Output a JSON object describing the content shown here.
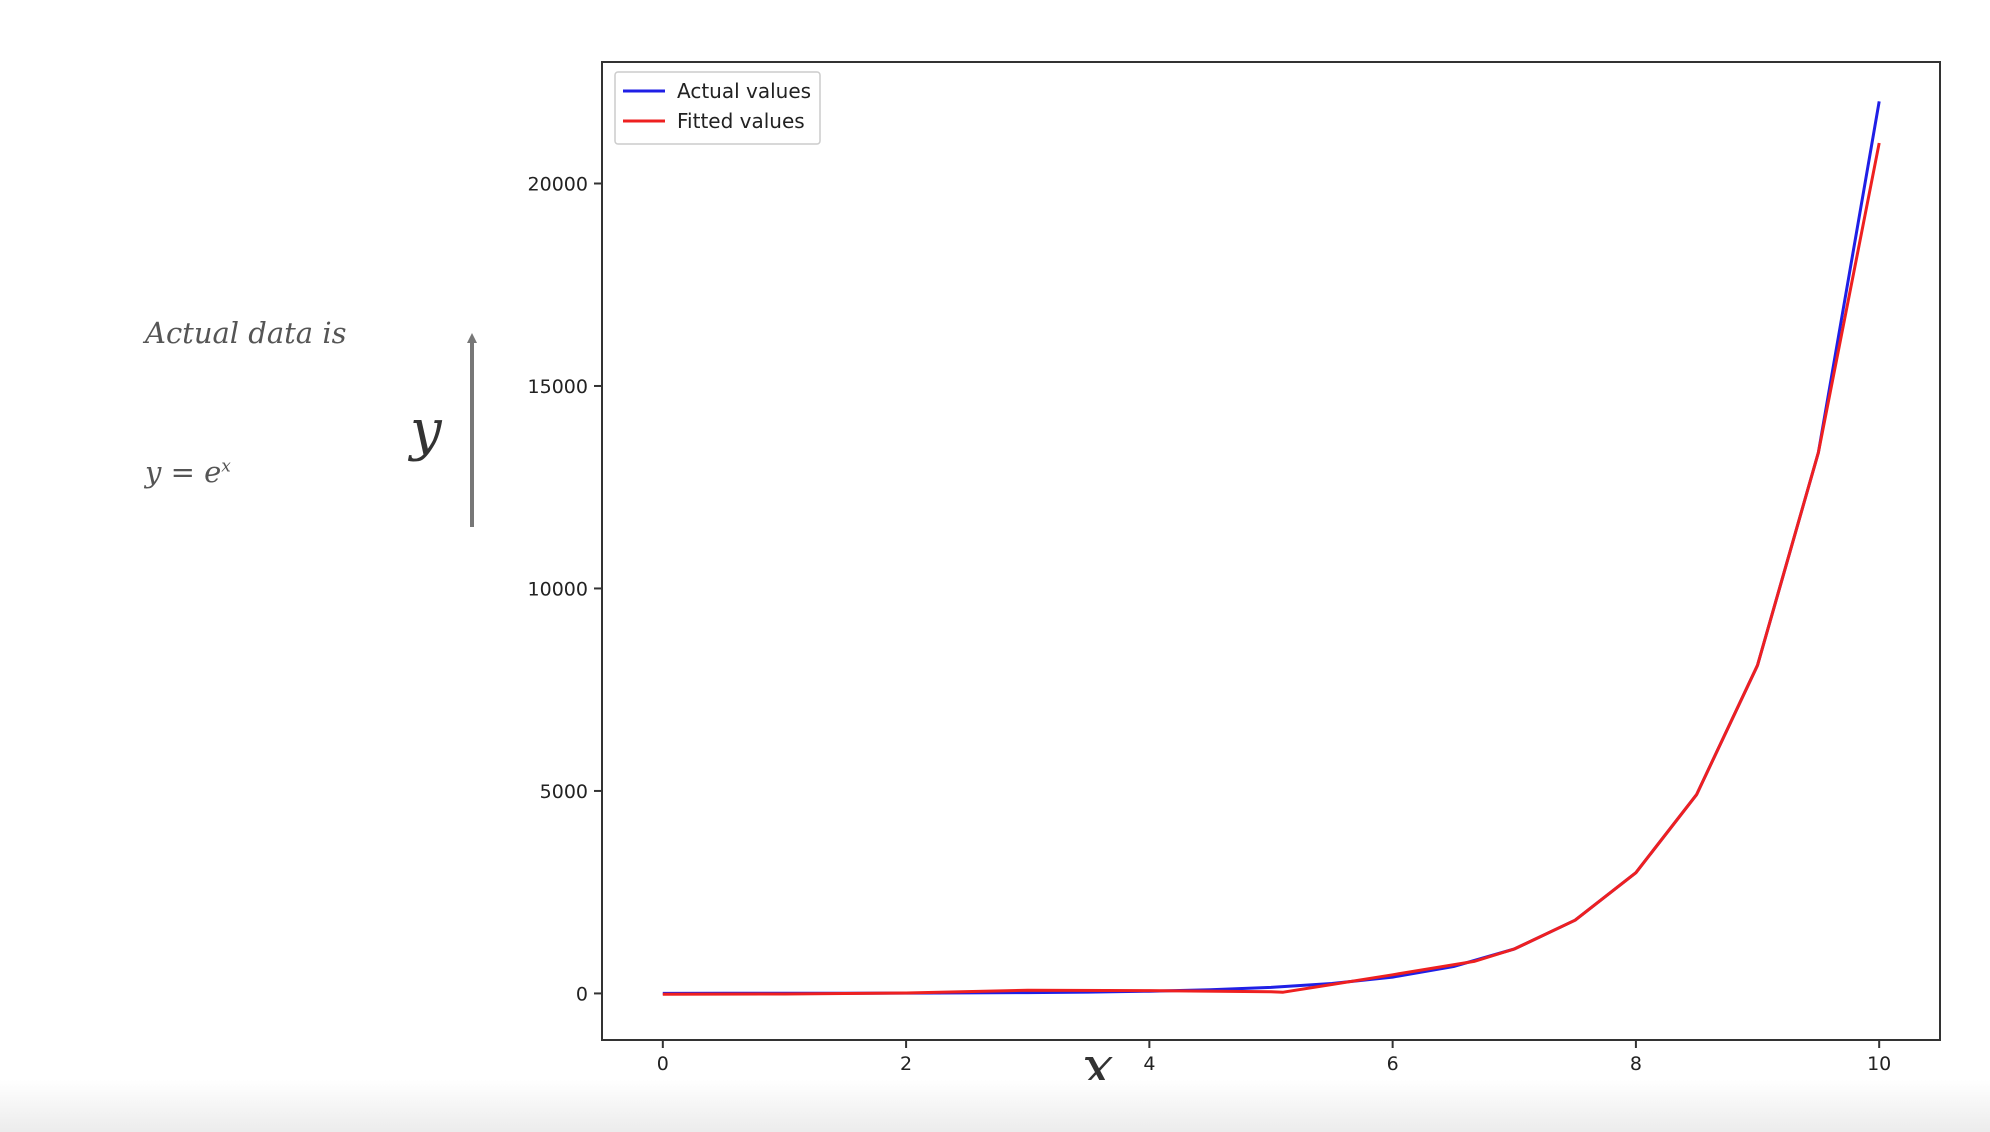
{
  "annotations": {
    "line1": "Actual data is",
    "eq_base": "y = e",
    "eq_exp": "x",
    "y_symbol": "y",
    "x_symbol": "x",
    "arrow_color": "#777777"
  },
  "chart_data": {
    "type": "line",
    "title": "",
    "xlabel": "",
    "ylabel": "",
    "xlim": [
      -0.5,
      10.5
    ],
    "ylim": [
      -1150,
      23000
    ],
    "xticks": [
      0,
      2,
      4,
      6,
      8,
      10
    ],
    "yticks": [
      0,
      5000,
      10000,
      15000,
      20000
    ],
    "grid": false,
    "legend_position": "top-left",
    "series": [
      {
        "name": "Actual values",
        "color": "#1f1fe6",
        "x": [
          0,
          0.5,
          1,
          1.5,
          2,
          2.5,
          3,
          3.5,
          4,
          4.5,
          5,
          5.5,
          6,
          6.5,
          7,
          7.5,
          8,
          8.5,
          9,
          9.5,
          10
        ],
        "y": [
          1,
          2,
          3,
          4,
          7,
          12,
          20,
          33,
          55,
          90,
          148,
          245,
          403,
          665,
          1097,
          1808,
          2981,
          4915,
          8103,
          13360,
          22026
        ]
      },
      {
        "name": "Fitted values",
        "color": "#ee2020",
        "x": [
          0,
          1,
          2,
          3,
          4,
          5,
          5.1,
          5.5,
          6,
          6.67,
          7,
          7.5,
          8,
          8.5,
          9,
          9.5,
          10
        ],
        "y": [
          -20,
          -15,
          10,
          80,
          70,
          40,
          30,
          220,
          460,
          790,
          1097,
          1808,
          2981,
          4915,
          8103,
          13360,
          21000
        ]
      }
    ]
  }
}
